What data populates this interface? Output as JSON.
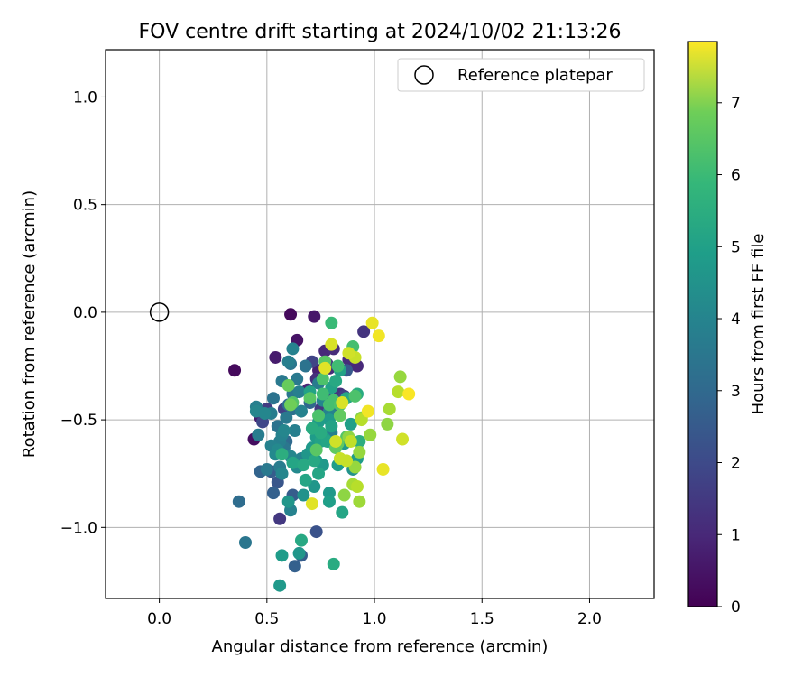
{
  "chart_data": {
    "type": "scatter",
    "title": "FOV centre drift starting at 2024/10/02 21:13:26",
    "xlabel": "Angular distance from reference (arcmin)",
    "ylabel": "Rotation from reference (arcmin)",
    "xlim": [
      -0.25,
      2.3
    ],
    "ylim": [
      -1.33,
      1.22
    ],
    "xticks": [
      0.0,
      0.5,
      1.0,
      1.5,
      2.0
    ],
    "xtick_labels": [
      "0.0",
      "0.5",
      "1.0",
      "1.5",
      "2.0"
    ],
    "yticks": [
      1.0,
      0.5,
      0.0,
      -0.5,
      -1.0
    ],
    "ytick_labels": [
      "1.0",
      "0.5",
      "0.0",
      "−0.5",
      "−1.0"
    ],
    "grid": true,
    "legend": {
      "position": "top-right",
      "entries": [
        "Reference platepar"
      ]
    },
    "reference_point": {
      "x": 0.0,
      "y": 0.0
    },
    "colorbar": {
      "label": "Hours from first FF file",
      "colormap": "viridis",
      "range": [
        0,
        7.85
      ],
      "ticks": [
        0,
        1,
        2,
        3,
        4,
        5,
        6,
        7
      ],
      "tick_labels": [
        "0",
        "1",
        "2",
        "3",
        "4",
        "5",
        "6",
        "7"
      ]
    },
    "series": [
      {
        "x": [
          0.61,
          0.72,
          0.64,
          0.35,
          0.54,
          0.44,
          0.47,
          0.74,
          0.77,
          0.81,
          0.69,
          0.73,
          0.79,
          0.84,
          0.88,
          0.92,
          0.95,
          0.78,
          0.82,
          0.75,
          0.8,
          0.86,
          0.58,
          0.5,
          0.48,
          0.71,
          0.83,
          0.79,
          0.87,
          0.83,
          0.73,
          0.66,
          0.63,
          0.56,
          0.62,
          0.55,
          0.47,
          0.52,
          0.53,
          0.37,
          0.59,
          0.6,
          0.62,
          0.7,
          0.61,
          0.57,
          0.53,
          0.52,
          0.55,
          0.59,
          0.62,
          0.64,
          0.68,
          0.58,
          0.56,
          0.5,
          0.46,
          0.6,
          0.62,
          0.65,
          0.66,
          0.74,
          0.76,
          0.79,
          0.8,
          0.58,
          0.52,
          0.56,
          0.61,
          0.64,
          0.66,
          0.57,
          0.55,
          0.45,
          0.45,
          0.49,
          0.57,
          0.63,
          0.54,
          0.4,
          0.61,
          0.67,
          0.72,
          0.76,
          0.69,
          0.71,
          0.73,
          0.77,
          0.79,
          0.83,
          0.89,
          0.81,
          0.86,
          0.73,
          0.79,
          0.9,
          0.92,
          0.56,
          0.57,
          0.6,
          0.65,
          0.7,
          0.74,
          0.79,
          0.75,
          0.78,
          0.8,
          0.74,
          0.82,
          0.84,
          0.87,
          0.92,
          0.68,
          0.72,
          0.75,
          0.8,
          0.62,
          0.67,
          0.71,
          0.57,
          0.66,
          0.85,
          0.81,
          0.93,
          0.8,
          0.83,
          0.76,
          0.79,
          0.62,
          0.7,
          0.74,
          0.76,
          0.81,
          0.84,
          0.87,
          0.82,
          0.9,
          0.77,
          0.84,
          0.91,
          0.61,
          0.73,
          0.6,
          0.83,
          0.94,
          0.88,
          0.91,
          0.93,
          0.9,
          0.86,
          0.98,
          1.06,
          1.12,
          1.07,
          1.11,
          1.13,
          0.93,
          0.94,
          0.84,
          0.89,
          0.92,
          0.88,
          0.8,
          0.87,
          0.85,
          0.77,
          0.99,
          1.02,
          0.97,
          1.16,
          1.04,
          0.71,
          0.91,
          0.82
        ],
        "y": [
          -0.01,
          -0.02,
          -0.13,
          -0.27,
          -0.21,
          -0.59,
          -0.49,
          -0.27,
          -0.18,
          -0.17,
          -0.36,
          -0.31,
          -0.26,
          -0.38,
          -0.22,
          -0.25,
          -0.09,
          -0.24,
          -0.43,
          -0.45,
          -0.47,
          -0.39,
          -0.45,
          -0.45,
          -0.51,
          -0.23,
          -0.47,
          -0.4,
          -0.27,
          -0.47,
          -1.02,
          -1.13,
          -1.18,
          -0.96,
          -0.85,
          -0.79,
          -0.74,
          -0.74,
          -0.84,
          -0.88,
          -0.6,
          -0.43,
          -0.45,
          -0.42,
          -0.24,
          -0.32,
          -0.4,
          -0.47,
          -0.53,
          -0.49,
          -0.38,
          -0.31,
          -0.25,
          -0.63,
          -0.72,
          -0.73,
          -0.57,
          -0.23,
          -0.17,
          -0.37,
          -0.46,
          -0.33,
          -0.41,
          -0.46,
          -0.56,
          -0.55,
          -0.62,
          -0.6,
          -0.67,
          -0.72,
          -0.68,
          -0.75,
          -0.64,
          -0.44,
          -0.46,
          -0.47,
          -0.57,
          -0.55,
          -0.66,
          -1.07,
          -0.92,
          -0.85,
          -0.81,
          -0.71,
          -0.66,
          -0.63,
          -0.58,
          -0.59,
          -0.5,
          -0.71,
          -0.52,
          -0.61,
          -0.61,
          -0.69,
          -0.88,
          -0.73,
          -0.68,
          -1.27,
          -1.13,
          -0.88,
          -1.12,
          -0.37,
          -0.51,
          -0.84,
          -0.6,
          -0.6,
          -0.53,
          -0.75,
          -0.32,
          -0.27,
          -0.4,
          -0.38,
          -0.78,
          -0.69,
          -0.56,
          -0.35,
          -0.7,
          -0.71,
          -0.54,
          -0.66,
          -1.06,
          -0.93,
          -1.17,
          -0.6,
          -0.05,
          -0.25,
          -0.31,
          -0.43,
          -0.42,
          -0.4,
          -0.48,
          -0.38,
          -0.41,
          -0.43,
          -0.58,
          -0.63,
          -0.16,
          -0.23,
          -0.48,
          -0.39,
          -0.43,
          -0.64,
          -0.34,
          -0.61,
          -0.49,
          -0.58,
          -0.72,
          -0.88,
          -0.8,
          -0.85,
          -0.57,
          -0.52,
          -0.3,
          -0.45,
          -0.37,
          -0.59,
          -0.65,
          -0.5,
          -0.68,
          -0.6,
          -0.81,
          -0.19,
          -0.15,
          -0.69,
          -0.42,
          -0.26,
          -0.05,
          -0.11,
          -0.46,
          -0.38,
          -0.73,
          -0.89,
          -0.21,
          -0.6
        ],
        "hours": [
          0.2,
          0.5,
          0.4,
          0.2,
          0.6,
          0.3,
          0.6,
          0.7,
          0.9,
          1.0,
          0.8,
          1.1,
          1.0,
          1.2,
          1.0,
          0.9,
          1.2,
          1.3,
          1.2,
          1.3,
          1.4,
          1.5,
          1.5,
          1.4,
          1.7,
          1.6,
          1.8,
          2.0,
          2.2,
          2.4,
          2.0,
          2.3,
          2.4,
          1.3,
          2.3,
          2.1,
          2.5,
          2.3,
          2.4,
          2.8,
          2.7,
          2.8,
          2.9,
          2.6,
          3.1,
          3.2,
          3.0,
          3.3,
          3.0,
          3.2,
          3.1,
          3.2,
          3.0,
          3.1,
          3.3,
          3.2,
          3.3,
          3.4,
          3.5,
          3.4,
          3.5,
          3.3,
          3.6,
          3.5,
          3.4,
          3.6,
          3.5,
          3.4,
          3.6,
          3.7,
          3.5,
          3.6,
          3.7,
          3.4,
          3.6,
          3.6,
          3.5,
          3.4,
          3.7,
          3.1,
          3.5,
          4.0,
          4.1,
          4.2,
          4.1,
          4.2,
          4.3,
          4.4,
          4.2,
          4.3,
          4.4,
          4.1,
          4.2,
          4.3,
          4.4,
          4.0,
          4.3,
          4.2,
          4.3,
          4.1,
          4.1,
          4.5,
          4.3,
          4.2,
          4.5,
          4.6,
          4.5,
          4.6,
          4.7,
          4.5,
          4.7,
          4.8,
          4.6,
          4.7,
          4.8,
          4.5,
          4.6,
          4.7,
          4.8,
          4.9,
          4.7,
          4.6,
          4.8,
          4.9,
          5.3,
          5.4,
          5.6,
          5.5,
          5.7,
          5.8,
          5.6,
          5.4,
          5.5,
          5.6,
          5.7,
          5.9,
          5.5,
          5.8,
          5.9,
          5.6,
          6.1,
          5.8,
          6.0,
          5.9,
          6.4,
          6.5,
          6.6,
          6.7,
          6.8,
          6.5,
          6.6,
          6.5,
          6.6,
          6.8,
          7.0,
          7.3,
          6.6,
          7.0,
          7.2,
          7.1,
          7.0,
          7.3,
          7.4,
          7.2,
          7.4,
          7.5,
          7.6,
          7.7,
          7.7,
          7.8,
          7.6,
          7.5,
          7.2,
          7.3
        ]
      }
    ]
  }
}
